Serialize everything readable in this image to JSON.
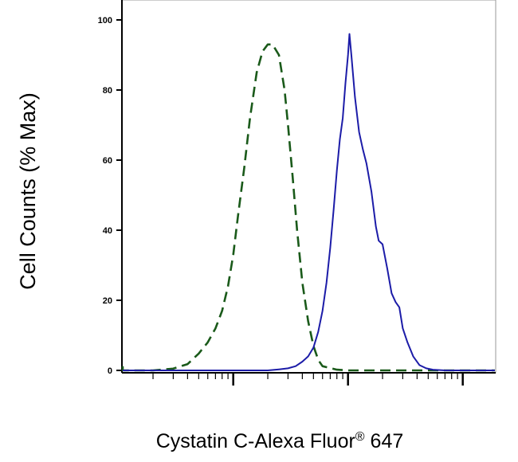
{
  "chart_data": {
    "type": "line",
    "title": "",
    "xlabel": "Cystatin C-Alexa Fluor",
    "xlabel_super": "®",
    "xlabel_suffix": " 647",
    "ylabel": "Cell Counts (% Max)",
    "xscale": "log",
    "xlim": [
      0.5,
      10000
    ],
    "ylim": [
      0,
      100
    ],
    "yticks": [
      "0",
      "20",
      "40",
      "60",
      "80",
      "100"
    ],
    "grid": false,
    "series": [
      {
        "style": "dashed",
        "color": "#1a5a1a",
        "points": [
          [
            0.5,
            1.2
          ],
          [
            0.6,
            0.2
          ],
          [
            1,
            0
          ],
          [
            2,
            0
          ],
          [
            3,
            0.5
          ],
          [
            4,
            1.8
          ],
          [
            5,
            4.8
          ],
          [
            6,
            8
          ],
          [
            7,
            12
          ],
          [
            8,
            17
          ],
          [
            9,
            24
          ],
          [
            10,
            33
          ],
          [
            11,
            44
          ],
          [
            12.5,
            58
          ],
          [
            14,
            72
          ],
          [
            16,
            85
          ],
          [
            18,
            91
          ],
          [
            20,
            93
          ],
          [
            22,
            93
          ],
          [
            25,
            90
          ],
          [
            28,
            80
          ],
          [
            30,
            70
          ],
          [
            33,
            55
          ],
          [
            36,
            40
          ],
          [
            40,
            25
          ],
          [
            45,
            14
          ],
          [
            50,
            7
          ],
          [
            55,
            3
          ],
          [
            60,
            1.2
          ],
          [
            80,
            0.2
          ],
          [
            100,
            0
          ],
          [
            10000,
            0
          ]
        ]
      },
      {
        "style": "solid",
        "color": "#1c1ca8",
        "points": [
          [
            0.5,
            0
          ],
          [
            20,
            0
          ],
          [
            25,
            0.3
          ],
          [
            30,
            0.6
          ],
          [
            35,
            1.2
          ],
          [
            40,
            2.5
          ],
          [
            45,
            4
          ],
          [
            50,
            6.5
          ],
          [
            55,
            11
          ],
          [
            60,
            17
          ],
          [
            65,
            25
          ],
          [
            70,
            35
          ],
          [
            75,
            46
          ],
          [
            80,
            57
          ],
          [
            85,
            66
          ],
          [
            90,
            72
          ],
          [
            95,
            82
          ],
          [
            100,
            90
          ],
          [
            103,
            96
          ],
          [
            107,
            90
          ],
          [
            115,
            78
          ],
          [
            125,
            68
          ],
          [
            135,
            63
          ],
          [
            145,
            59
          ],
          [
            160,
            51
          ],
          [
            175,
            41
          ],
          [
            185,
            37
          ],
          [
            200,
            36
          ],
          [
            220,
            29
          ],
          [
            240,
            22
          ],
          [
            260,
            19.5
          ],
          [
            280,
            18
          ],
          [
            300,
            12
          ],
          [
            330,
            8
          ],
          [
            370,
            4
          ],
          [
            420,
            1.5
          ],
          [
            480,
            0.6
          ],
          [
            550,
            0.2
          ],
          [
            700,
            0
          ],
          [
            10000,
            0
          ]
        ]
      }
    ]
  }
}
